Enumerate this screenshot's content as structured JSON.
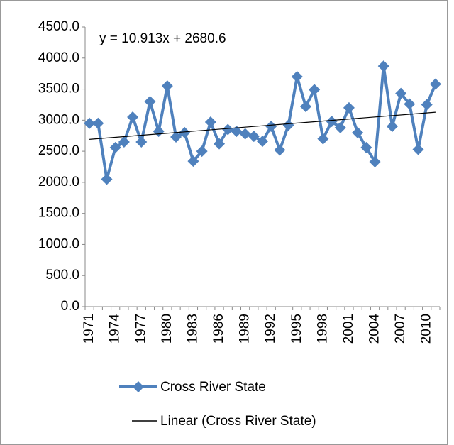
{
  "chart_data": {
    "type": "line",
    "categories": [
      "1971",
      null,
      null,
      "1974",
      null,
      null,
      "1977",
      null,
      null,
      "1980",
      null,
      null,
      "1983",
      null,
      null,
      "1986",
      null,
      null,
      "1989",
      null,
      null,
      "1992",
      null,
      null,
      "1995",
      null,
      null,
      "1998",
      null,
      null,
      "2001",
      null,
      null,
      "2004",
      null,
      null,
      "2007",
      null,
      null,
      "2010",
      null
    ],
    "series": [
      {
        "name": "Cross River State",
        "color": "#4f81bd",
        "values": [
          2950,
          2950,
          2050,
          2560,
          2650,
          3050,
          2650,
          3300,
          2820,
          3550,
          2730,
          2800,
          2340,
          2500,
          2970,
          2620,
          2850,
          2820,
          2780,
          2740,
          2660,
          2900,
          2520,
          2920,
          3700,
          3220,
          3490,
          2700,
          2980,
          2880,
          3200,
          2800,
          2560,
          2330,
          3870,
          2900,
          3430,
          3260,
          2530,
          3250,
          3580
        ]
      }
    ],
    "trendline": {
      "name": "Linear (Cross River State)",
      "color": "#000000",
      "slope": 10.913,
      "intercept": 2680.6,
      "label": "y = 10.913x + 2680.6"
    },
    "ylim": [
      0,
      4500
    ],
    "yticks": [
      {
        "value": 0,
        "label": "0.0"
      },
      {
        "value": 500,
        "label": "500.0"
      },
      {
        "value": 1000,
        "label": "1000.0"
      },
      {
        "value": 1500,
        "label": "1500.0"
      },
      {
        "value": 2000,
        "label": "2000.0"
      },
      {
        "value": 2500,
        "label": "2500.0"
      },
      {
        "value": 3000,
        "label": "3000.0"
      },
      {
        "value": 3500,
        "label": "3500.0"
      },
      {
        "value": 4000,
        "label": "4000.0"
      },
      {
        "value": 4500,
        "label": "4500.0"
      }
    ],
    "grid": false,
    "legend": "bottom"
  }
}
